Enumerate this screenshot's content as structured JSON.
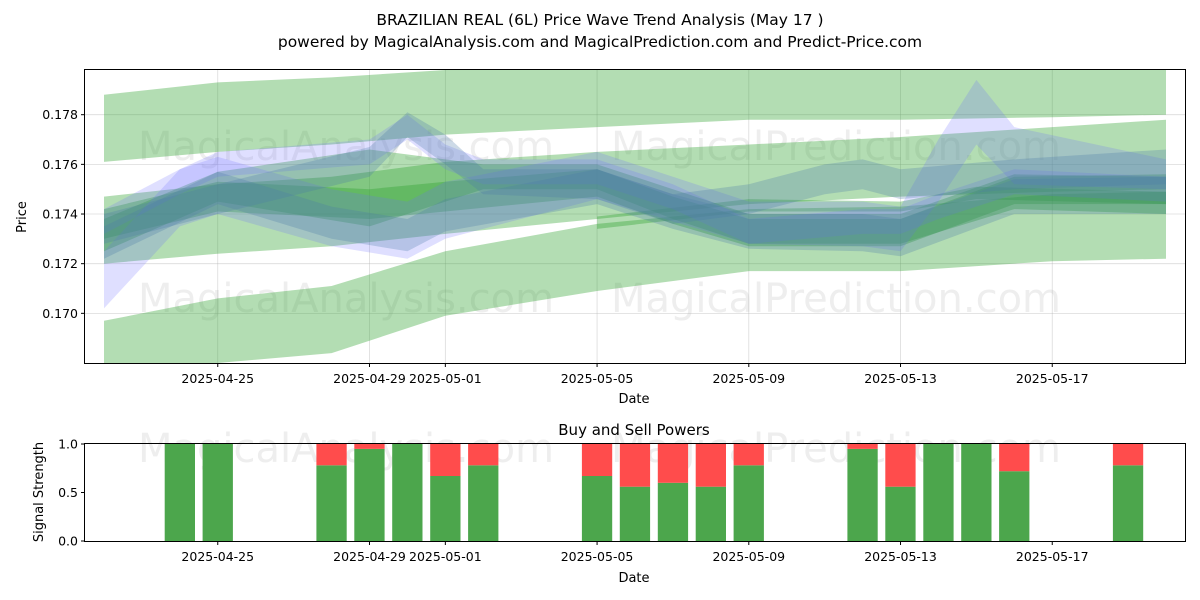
{
  "header": {
    "title": "BRAZILIAN REAL (6L) Price Wave Trend Analysis (May 17 )",
    "subtitle": "powered by MagicalAnalysis.com and MagicalPrediction.com and Predict-Price.com"
  },
  "watermarks": [
    "MagicalAnalysis.com",
    "MagicalPrediction.com"
  ],
  "colors": {
    "buy": "#4ca64c",
    "sell": "#ff4c4c",
    "band_green": "#2ca02c",
    "band_blue": "#6f6fff",
    "band_steel": "#4a7aa8",
    "grid": "#b0b0b0"
  },
  "chart_data": [
    {
      "type": "area",
      "title": "",
      "xlabel": "Date",
      "ylabel": "Price",
      "xlim": [
        "2025-04-21T12:00",
        "2025-05-20T12:00"
      ],
      "ylim": [
        0.168,
        0.1798
      ],
      "x_ticks": [
        "2025-04-25",
        "2025-04-29",
        "2025-05-01",
        "2025-05-05",
        "2025-05-09",
        "2025-05-13",
        "2025-05-17"
      ],
      "y_ticks": [
        0.17,
        0.172,
        0.174,
        0.176,
        0.178
      ],
      "y_tick_labels": [
        "0.170",
        "0.172",
        "0.174",
        "0.176",
        "0.178"
      ],
      "grid": true,
      "series": [
        {
          "kind": "band",
          "color": "green",
          "x": [
            "2025-04-22",
            "2025-04-25",
            "2025-04-28",
            "2025-05-01",
            "2025-05-05",
            "2025-05-09",
            "2025-05-13",
            "2025-05-17",
            "2025-05-20"
          ],
          "lower": [
            0.1761,
            0.1765,
            0.1768,
            0.1772,
            0.1775,
            0.1778,
            0.1778,
            0.1779,
            0.178
          ],
          "upper": [
            0.1788,
            0.1793,
            0.1795,
            0.1798,
            0.1798,
            0.1798,
            0.1798,
            0.1798,
            0.1798
          ]
        },
        {
          "kind": "band",
          "color": "green",
          "x": [
            "2025-04-22",
            "2025-04-25",
            "2025-04-28",
            "2025-05-01",
            "2025-05-05",
            "2025-05-09",
            "2025-05-13",
            "2025-05-17",
            "2025-05-20"
          ],
          "lower": [
            0.172,
            0.1724,
            0.1727,
            0.1732,
            0.1738,
            0.1744,
            0.1747,
            0.1749,
            0.175
          ],
          "upper": [
            0.1747,
            0.1752,
            0.1755,
            0.1761,
            0.1765,
            0.1768,
            0.1771,
            0.1775,
            0.1778
          ]
        },
        {
          "kind": "band",
          "color": "green",
          "x": [
            "2025-04-22",
            "2025-04-25",
            "2025-04-28",
            "2025-05-01",
            "2025-05-05",
            "2025-05-09",
            "2025-05-13",
            "2025-05-17",
            "2025-05-20"
          ],
          "lower": [
            0.168,
            0.168,
            0.1684,
            0.1699,
            0.1709,
            0.1717,
            0.1717,
            0.1721,
            0.1722
          ],
          "upper": [
            0.1697,
            0.1706,
            0.1711,
            0.1725,
            0.1736,
            0.1742,
            0.1743,
            0.1748,
            0.1749
          ]
        },
        {
          "kind": "band",
          "color": "green",
          "x": [
            "2025-04-22",
            "2025-04-25",
            "2025-04-29",
            "2025-05-02",
            "2025-05-05",
            "2025-05-07",
            "2025-05-09",
            "2025-05-13",
            "2025-05-16",
            "2025-05-20"
          ],
          "lower": [
            0.1725,
            0.1745,
            0.1735,
            0.175,
            0.175,
            0.1738,
            0.1728,
            0.1728,
            0.1742,
            0.174
          ],
          "upper": [
            0.1738,
            0.1757,
            0.1766,
            0.176,
            0.176,
            0.175,
            0.174,
            0.174,
            0.1756,
            0.1755
          ]
        },
        {
          "kind": "band",
          "color": "green",
          "x": [
            "2025-04-22",
            "2025-04-25",
            "2025-04-29",
            "2025-05-01",
            "2025-05-05",
            "2025-05-07",
            "2025-05-09",
            "2025-05-13",
            "2025-05-16",
            "2025-05-20"
          ],
          "lower": [
            0.173,
            0.1741,
            0.1738,
            0.1741,
            0.1747,
            0.1736,
            0.1727,
            0.1727,
            0.1744,
            0.1744
          ],
          "upper": [
            0.1742,
            0.1753,
            0.175,
            0.1753,
            0.1758,
            0.1747,
            0.1738,
            0.1738,
            0.1755,
            0.1756
          ]
        },
        {
          "kind": "band",
          "color": "green",
          "x": [
            "2025-05-05",
            "2025-05-09",
            "2025-05-13",
            "2025-05-15",
            "2025-05-20"
          ],
          "lower": [
            0.1734,
            0.1741,
            0.1741,
            0.1746,
            0.1744
          ],
          "upper": [
            0.1739,
            0.1746,
            0.1745,
            0.1751,
            0.1749
          ]
        },
        {
          "kind": "band",
          "color": "blue",
          "x": [
            "2025-04-22",
            "2025-04-24",
            "2025-04-25",
            "2025-04-29",
            "2025-04-30",
            "2025-05-01",
            "2025-05-02",
            "2025-05-05",
            "2025-05-07",
            "2025-05-09",
            "2025-05-12",
            "2025-05-13",
            "2025-05-14",
            "2025-05-16",
            "2025-05-20"
          ],
          "lower": [
            0.1732,
            0.1748,
            0.1755,
            0.176,
            0.177,
            0.1758,
            0.1752,
            0.1752,
            0.1742,
            0.1728,
            0.1732,
            0.1732,
            0.1738,
            0.1748,
            0.1745
          ],
          "upper": [
            0.1742,
            0.1758,
            0.1765,
            0.177,
            0.178,
            0.1768,
            0.1762,
            0.1762,
            0.1752,
            0.1738,
            0.1742,
            0.1742,
            0.1748,
            0.1758,
            0.1755
          ]
        },
        {
          "kind": "band",
          "color": "blue",
          "x": [
            "2025-04-22",
            "2025-04-24",
            "2025-04-25",
            "2025-04-28",
            "2025-04-30",
            "2025-05-01",
            "2025-05-05",
            "2025-05-07",
            "2025-05-09",
            "2025-05-12",
            "2025-05-13",
            "2025-05-14",
            "2025-05-15",
            "2025-05-16",
            "2025-05-20"
          ],
          "lower": [
            0.1702,
            0.1735,
            0.174,
            0.1727,
            0.1722,
            0.173,
            0.1746,
            0.1737,
            0.1728,
            0.1727,
            0.1725,
            0.1745,
            0.1768,
            0.1752,
            0.175
          ],
          "upper": [
            0.1725,
            0.1758,
            0.1763,
            0.175,
            0.1745,
            0.1753,
            0.1765,
            0.1755,
            0.1745,
            0.1745,
            0.1743,
            0.177,
            0.1794,
            0.1775,
            0.1762
          ]
        },
        {
          "kind": "band",
          "color": "steel",
          "x": [
            "2025-04-22",
            "2025-04-25",
            "2025-04-28",
            "2025-04-30",
            "2025-05-01",
            "2025-05-05",
            "2025-05-07",
            "2025-05-09",
            "2025-05-12",
            "2025-05-13",
            "2025-05-16",
            "2025-05-20"
          ],
          "lower": [
            0.1722,
            0.1744,
            0.173,
            0.1725,
            0.1733,
            0.1744,
            0.1734,
            0.1726,
            0.1725,
            0.1723,
            0.174,
            0.174
          ],
          "upper": [
            0.1735,
            0.1757,
            0.1743,
            0.1738,
            0.1746,
            0.1758,
            0.1748,
            0.174,
            0.174,
            0.1738,
            0.1754,
            0.1755
          ]
        },
        {
          "kind": "band",
          "color": "steel",
          "x": [
            "2025-04-22",
            "2025-04-25",
            "2025-04-29",
            "2025-04-30",
            "2025-05-01",
            "2025-05-02",
            "2025-05-05",
            "2025-05-07",
            "2025-05-09",
            "2025-05-11",
            "2025-05-12",
            "2025-05-13",
            "2025-05-16",
            "2025-05-20"
          ],
          "lower": [
            0.1728,
            0.174,
            0.1755,
            0.1771,
            0.176,
            0.1748,
            0.1746,
            0.1736,
            0.174,
            0.1748,
            0.175,
            0.1746,
            0.175,
            0.1752
          ],
          "upper": [
            0.174,
            0.1752,
            0.1767,
            0.1781,
            0.1772,
            0.1758,
            0.1758,
            0.1748,
            0.1752,
            0.176,
            0.1762,
            0.1758,
            0.1762,
            0.1766
          ]
        }
      ]
    },
    {
      "type": "bar",
      "title": "Buy and Sell Powers",
      "xlabel": "Date",
      "ylabel": "Signal Strength",
      "ylim": [
        0,
        1.0
      ],
      "y_ticks": [
        0.0,
        0.5,
        1.0
      ],
      "y_tick_labels": [
        "0.0",
        "0.5",
        "1.0"
      ],
      "x_ticks": [
        "2025-04-25",
        "2025-04-29",
        "2025-05-01",
        "2025-05-05",
        "2025-05-09",
        "2025-05-13",
        "2025-05-17"
      ],
      "categories": [
        "2025-04-24",
        "2025-04-25",
        "2025-04-28",
        "2025-04-29",
        "2025-04-30",
        "2025-05-01",
        "2025-05-02",
        "2025-05-05",
        "2025-05-06",
        "2025-05-07",
        "2025-05-08",
        "2025-05-09",
        "2025-05-12",
        "2025-05-13",
        "2025-05-14",
        "2025-05-15",
        "2025-05-16",
        "2025-05-19"
      ],
      "series": [
        {
          "name": "Buy",
          "values": [
            1.0,
            1.0,
            0.78,
            0.95,
            1.0,
            0.67,
            0.78,
            0.67,
            0.56,
            0.6,
            0.56,
            0.78,
            0.95,
            0.56,
            1.0,
            1.0,
            0.72,
            0.78
          ]
        },
        {
          "name": "Sell",
          "values": [
            0.0,
            0.0,
            0.22,
            0.05,
            0.0,
            0.33,
            0.22,
            0.33,
            0.44,
            0.4,
            0.44,
            0.22,
            0.05,
            0.44,
            0.0,
            0.0,
            0.28,
            0.22
          ]
        }
      ]
    }
  ]
}
